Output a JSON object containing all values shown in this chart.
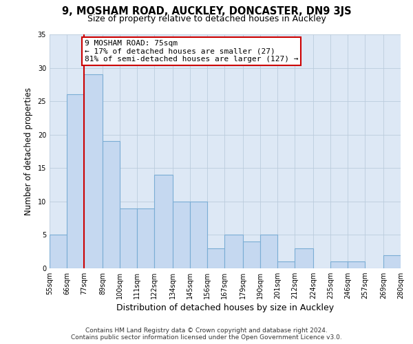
{
  "title": "9, MOSHAM ROAD, AUCKLEY, DONCASTER, DN9 3JS",
  "subtitle": "Size of property relative to detached houses in Auckley",
  "xlabel": "Distribution of detached houses by size in Auckley",
  "ylabel": "Number of detached properties",
  "footer_line1": "Contains HM Land Registry data © Crown copyright and database right 2024.",
  "footer_line2": "Contains public sector information licensed under the Open Government Licence v3.0.",
  "bin_labels": [
    "55sqm",
    "66sqm",
    "77sqm",
    "89sqm",
    "100sqm",
    "111sqm",
    "122sqm",
    "134sqm",
    "145sqm",
    "156sqm",
    "167sqm",
    "179sqm",
    "190sqm",
    "201sqm",
    "212sqm",
    "224sqm",
    "235sqm",
    "246sqm",
    "257sqm",
    "269sqm",
    "280sqm"
  ],
  "bin_edges": [
    55,
    66,
    77,
    89,
    100,
    111,
    122,
    134,
    145,
    156,
    167,
    179,
    190,
    201,
    212,
    224,
    235,
    246,
    257,
    269,
    280
  ],
  "counts": [
    5,
    26,
    29,
    19,
    9,
    9,
    14,
    10,
    10,
    3,
    5,
    4,
    5,
    1,
    3,
    0,
    1,
    1,
    0,
    2
  ],
  "bar_color": "#c5d8f0",
  "bar_edge_color": "#7aadd4",
  "bar_linewidth": 0.8,
  "vline_x": 77,
  "vline_color": "#cc0000",
  "vline_linewidth": 1.5,
  "annotation_line1": "9 MOSHAM ROAD: 75sqm",
  "annotation_line2": "← 17% of detached houses are smaller (27)",
  "annotation_line3": "81% of semi-detached houses are larger (127) →",
  "annotation_box_edgecolor": "#cc0000",
  "annotation_box_facecolor": "#ffffff",
  "annotation_fontsize": 8,
  "ylim": [
    0,
    35
  ],
  "yticks": [
    0,
    5,
    10,
    15,
    20,
    25,
    30,
    35
  ],
  "grid_color": "#bbccdd",
  "background_color": "#dde8f5",
  "plot_background": "#dde8f5",
  "title_fontsize": 10.5,
  "subtitle_fontsize": 9,
  "xlabel_fontsize": 9,
  "ylabel_fontsize": 8.5,
  "tick_fontsize": 7,
  "footer_fontsize": 6.5,
  "footer_color": "#333333"
}
